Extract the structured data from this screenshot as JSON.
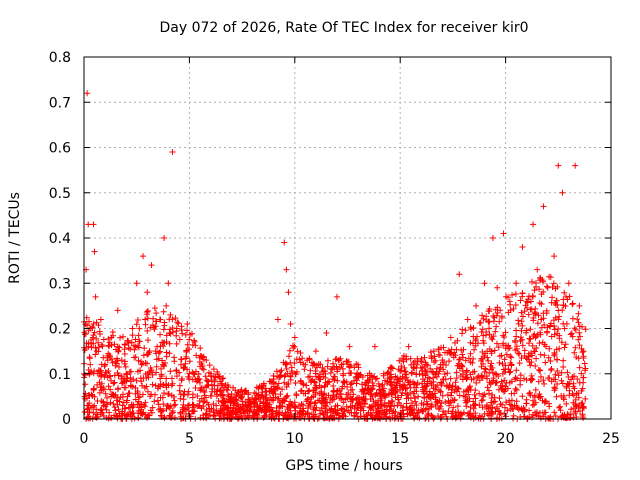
{
  "chart_data": {
    "type": "scatter",
    "title": "Day 072 of 2026, Rate Of TEC Index for receiver kir0",
    "xlabel": "GPS time / hours",
    "ylabel": "ROTI / TECUs",
    "xlim": [
      0,
      25
    ],
    "ylim": [
      0,
      0.8
    ],
    "xticks": [
      0,
      5,
      10,
      15,
      20,
      25
    ],
    "xtick_labels": [
      "0",
      "5",
      "10",
      "15",
      "20",
      "25"
    ],
    "yticks": [
      0,
      0.1,
      0.2,
      0.3,
      0.4,
      0.5,
      0.6,
      0.7,
      0.8
    ],
    "ytick_labels": [
      "0",
      "0.1",
      "0.2",
      "0.3",
      "0.4",
      "0.5",
      "0.6",
      "0.7",
      "0.8"
    ],
    "grid": true,
    "marker": "+",
    "color": "#ff0000",
    "series": [
      {
        "name": "ROTI",
        "x": [
          0.1,
          0.15,
          0.2,
          0.3,
          0.45,
          0.5,
          0.55,
          0.6,
          0.8,
          1.0,
          1.3,
          1.6,
          2.0,
          2.3,
          2.5,
          2.8,
          2.9,
          3.0,
          3.2,
          3.4,
          3.6,
          3.8,
          3.9,
          4.0,
          4.1,
          4.2,
          4.4,
          4.6,
          4.9,
          5.2,
          5.5,
          5.8,
          6.2,
          6.6,
          7.0,
          7.4,
          7.8,
          8.2,
          8.6,
          9.0,
          9.2,
          9.5,
          9.6,
          9.7,
          9.8,
          10.0,
          10.5,
          11.0,
          11.5,
          12.0,
          12.3,
          12.6,
          13.0,
          13.4,
          13.8,
          14.2,
          14.6,
          15.0,
          15.4,
          15.8,
          16.2,
          16.6,
          17.0,
          17.4,
          17.8,
          18.2,
          18.6,
          19.0,
          19.4,
          19.6,
          19.9,
          20.2,
          20.5,
          20.8,
          21.0,
          21.3,
          21.5,
          21.8,
          22.0,
          22.3,
          22.5,
          22.7,
          22.8,
          23.0,
          23.3,
          23.5,
          23.7
        ],
        "y": [
          0.33,
          0.72,
          0.43,
          0.2,
          0.43,
          0.37,
          0.27,
          0.15,
          0.22,
          0.12,
          0.18,
          0.24,
          0.1,
          0.2,
          0.3,
          0.36,
          0.22,
          0.28,
          0.34,
          0.15,
          0.22,
          0.4,
          0.25,
          0.3,
          0.23,
          0.59,
          0.2,
          0.12,
          0.21,
          0.1,
          0.08,
          0.13,
          0.06,
          0.09,
          0.04,
          0.05,
          0.03,
          0.07,
          0.06,
          0.08,
          0.22,
          0.39,
          0.33,
          0.28,
          0.21,
          0.18,
          0.12,
          0.15,
          0.19,
          0.27,
          0.1,
          0.16,
          0.12,
          0.08,
          0.16,
          0.06,
          0.04,
          0.09,
          0.16,
          0.12,
          0.1,
          0.15,
          0.13,
          0.18,
          0.32,
          0.22,
          0.25,
          0.3,
          0.4,
          0.29,
          0.41,
          0.26,
          0.3,
          0.38,
          0.26,
          0.43,
          0.33,
          0.47,
          0.29,
          0.36,
          0.56,
          0.5,
          0.2,
          0.3,
          0.56,
          0.25,
          0.15
        ]
      }
    ],
    "dense_band": {
      "note": "dense cloud of points",
      "x": [
        0,
        1,
        2,
        3,
        4,
        5,
        6,
        7,
        8,
        9,
        10,
        11,
        12,
        13,
        14,
        15,
        16,
        17,
        18,
        19,
        20,
        21,
        22,
        23,
        23.8
      ],
      "y_max": [
        0.24,
        0.2,
        0.18,
        0.25,
        0.24,
        0.2,
        0.12,
        0.07,
        0.06,
        0.1,
        0.17,
        0.12,
        0.14,
        0.12,
        0.09,
        0.14,
        0.15,
        0.16,
        0.2,
        0.24,
        0.27,
        0.3,
        0.32,
        0.28,
        0.2
      ]
    }
  }
}
